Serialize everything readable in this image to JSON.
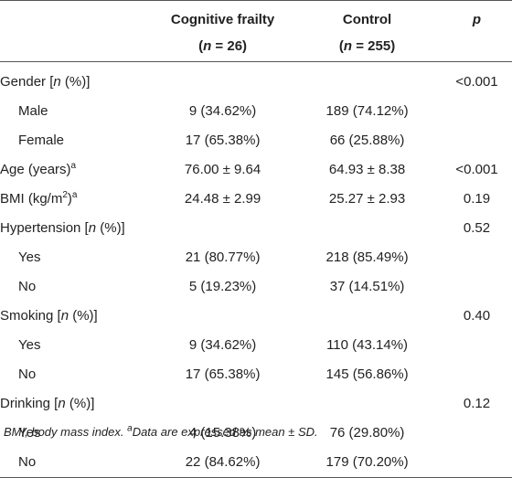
{
  "header": {
    "col_cf_name": "Cognitive frailty",
    "col_cf_n": "(n = 26)",
    "col_ctl_name": "Control",
    "col_ctl_n": "(n = 255)",
    "col_p": "p"
  },
  "rows": [
    {
      "label": "Gender [n (%)]",
      "cf": "",
      "ctl": "",
      "p": "<0.001"
    },
    {
      "label": "Male",
      "cf": "9 (34.62%)",
      "ctl": "189 (74.12%)",
      "p": ""
    },
    {
      "label": "Female",
      "cf": "17 (65.38%)",
      "ctl": "66 (25.88%)",
      "p": ""
    },
    {
      "label": "Age (years)a",
      "cf": "76.00 ± 9.64",
      "ctl": "64.93 ± 8.38",
      "p": "<0.001"
    },
    {
      "label": "BMI (kg/m2)a",
      "cf": "24.48 ± 2.99",
      "ctl": "25.27 ± 2.93",
      "p": "0.19"
    },
    {
      "label": "Hypertension [n (%)]",
      "cf": "",
      "ctl": "",
      "p": "0.52"
    },
    {
      "label": "Yes",
      "cf": "21 (80.77%)",
      "ctl": "218 (85.49%)",
      "p": ""
    },
    {
      "label": "No",
      "cf": "5 (19.23%)",
      "ctl": "37 (14.51%)",
      "p": ""
    },
    {
      "label": "Smoking [n (%)]",
      "cf": "",
      "ctl": "",
      "p": "0.40"
    },
    {
      "label": "Yes",
      "cf": "9 (34.62%)",
      "ctl": "110 (43.14%)",
      "p": ""
    },
    {
      "label": "No",
      "cf": "17 (65.38%)",
      "ctl": "145 (56.86%)",
      "p": ""
    },
    {
      "label": "Drinking [n (%)]",
      "cf": "",
      "ctl": "",
      "p": "0.12"
    },
    {
      "label": "Yes",
      "cf": "4 (15.38%)",
      "ctl": "76 (29.80%)",
      "p": ""
    },
    {
      "label": "No",
      "cf": "22 (84.62%)",
      "ctl": "179 (70.20%)",
      "p": ""
    }
  ],
  "footnote": "BMI, body mass index. aData are expressed as mean ± SD."
}
